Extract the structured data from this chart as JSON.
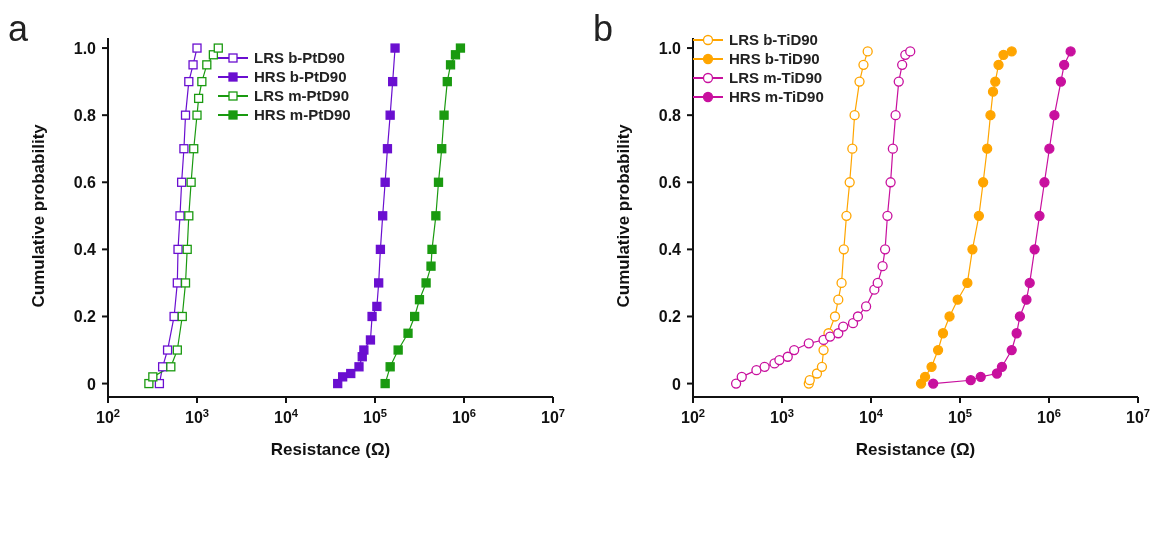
{
  "chart_data": [
    {
      "type": "line",
      "title": "a",
      "xlabel": "Resistance (Ω)",
      "ylabel": "Cumulative probability",
      "log": "x",
      "marker": "square",
      "line_style": "solid",
      "legend": "top",
      "xlim": [
        100,
        10000000
      ],
      "xticks": [
        {
          "value": 100,
          "label": "10$^{2}$"
        },
        {
          "value": 1000,
          "label": "10$^{3}$"
        },
        {
          "value": 10000,
          "label": "10$^{4}$"
        },
        {
          "value": 100000,
          "label": "10$^{5}$"
        },
        {
          "value": 1000000,
          "label": "10$^{6}$"
        },
        {
          "value": 10000000,
          "label": "10$^{7}$"
        }
      ],
      "ylim": [
        -0.04,
        1.03
      ],
      "yticks": [
        0,
        {
          "value": 0.2,
          "label": "0.2"
        },
        {
          "value": 0.4,
          "label": "0.4"
        },
        {
          "value": 0.6,
          "label": "0.6"
        },
        {
          "value": 0.8,
          "label": "0.8"
        },
        {
          "value": 1,
          "label": "1.0"
        }
      ],
      "series": [
        {
          "name": "LRS b-PtD90",
          "color": "#6a0fd0",
          "x": [
            378,
            411,
            467,
            553,
            601,
            612,
            644,
            672,
            713,
            743,
            809,
            903,
            1000
          ],
          "values": [
            0,
            0.05,
            0.1,
            0.2,
            0.3,
            0.4,
            0.5,
            0.6,
            0.7,
            0.8,
            0.9,
            0.95,
            1
          ]
        },
        {
          "name": "HRS b-PtD90",
          "color": "#6a0fd0",
          "x": [
            38100,
            43300,
            53400,
            66100,
            71900,
            75000,
            88900,
            92700,
            105000,
            110000,
            115000,
            122000,
            130000,
            138000,
            148000,
            158000,
            168000
          ],
          "values": [
            0,
            0.02,
            0.03,
            0.05,
            0.08,
            0.1,
            0.13,
            0.2,
            0.23,
            0.3,
            0.4,
            0.5,
            0.6,
            0.7,
            0.8,
            0.9,
            1
          ]
        },
        {
          "name": "LRS m-PtD90",
          "color": "#1a9a10",
          "x": [
            288,
            319,
            508,
            601,
            683,
            743,
            776,
            809,
            859,
            919,
            1000,
            1043,
            1134,
            1289,
            1527,
            1734
          ],
          "values": [
            0,
            0.02,
            0.05,
            0.1,
            0.2,
            0.3,
            0.4,
            0.5,
            0.6,
            0.7,
            0.8,
            0.85,
            0.9,
            0.95,
            0.98,
            1
          ]
        },
        {
          "name": "HRS m-PtD90",
          "color": "#1a9a10",
          "x": [
            130000,
            148000,
            182000,
            235000,
            279000,
            316000,
            375000,
            426000,
            437000,
            483000,
            517000,
            562000,
            597000,
            649000,
            706000,
            802000,
            912000
          ],
          "values": [
            0,
            0.05,
            0.1,
            0.15,
            0.2,
            0.25,
            0.3,
            0.35,
            0.4,
            0.5,
            0.6,
            0.7,
            0.8,
            0.9,
            0.95,
            0.98,
            1
          ]
        }
      ]
    },
    {
      "type": "line",
      "title": "b",
      "xlabel": "Resistance (Ω)",
      "ylabel": "Cumulative probability",
      "log": "x",
      "marker": "circle",
      "line_style": "solid",
      "legend": "top left",
      "xlim": [
        100,
        10000000
      ],
      "xticks": [
        {
          "value": 100,
          "label": "10$^{2}$"
        },
        {
          "value": 1000,
          "label": "10$^{3}$"
        },
        {
          "value": 10000,
          "label": "10$^{4}$"
        },
        {
          "value": 100000,
          "label": "10$^{5}$"
        },
        {
          "value": 1000000,
          "label": "10$^{6}$"
        },
        {
          "value": 10000000,
          "label": "10$^{7}$"
        }
      ],
      "ylim": [
        -0.04,
        1.03
      ],
      "yticks": [
        0,
        {
          "value": 0.2,
          "label": "0.2"
        },
        {
          "value": 0.4,
          "label": "0.4"
        },
        {
          "value": 0.6,
          "label": "0.6"
        },
        {
          "value": 0.8,
          "label": "0.8"
        },
        {
          "value": 1,
          "label": "1.0"
        }
      ],
      "series": [
        {
          "name": "LRS b-TiD90",
          "color": "#ffa500",
          "x": [
            2000,
            2050,
            2470,
            2810,
            2930,
            3330,
            3940,
            4290,
            4670,
            4950,
            5300,
            5760,
            6170,
            6540,
            7430,
            8230,
            9180
          ],
          "values": [
            0,
            0.01,
            0.03,
            0.05,
            0.1,
            0.15,
            0.2,
            0.25,
            0.3,
            0.4,
            0.5,
            0.6,
            0.7,
            0.8,
            0.9,
            0.95,
            0.99
          ]
        },
        {
          "name": "HRS b-TiD90",
          "color": "#ffa500",
          "x": [
            36500,
            40500,
            47900,
            56700,
            64400,
            76300,
            94200,
            121000,
            138000,
            163000,
            182000,
            202000,
            220000,
            235000,
            249000,
            271000,
            308000,
            381000
          ],
          "values": [
            0,
            0.02,
            0.05,
            0.1,
            0.15,
            0.2,
            0.25,
            0.3,
            0.4,
            0.5,
            0.6,
            0.7,
            0.8,
            0.87,
            0.9,
            0.95,
            0.98,
            0.99
          ]
        },
        {
          "name": "LRS m-TiD90",
          "color": "#c8109e",
          "x": [
            305,
            353,
            516,
            638,
            823,
            935,
            1160,
            1370,
            2000,
            2930,
            3470,
            4290,
            4870,
            6280,
            7130,
            8810,
            10900,
            11900,
            13500,
            14400,
            15300,
            16600,
            17600,
            18900,
            20500,
            22400,
            24300,
            27600
          ],
          "values": [
            0,
            0.02,
            0.04,
            0.05,
            0.06,
            0.07,
            0.08,
            0.1,
            0.12,
            0.13,
            0.14,
            0.15,
            0.17,
            0.18,
            0.2,
            0.23,
            0.28,
            0.3,
            0.35,
            0.4,
            0.5,
            0.6,
            0.7,
            0.8,
            0.9,
            0.95,
            0.98,
            0.99
          ]
        },
        {
          "name": "HRS m-TiD90",
          "color": "#c8109e",
          "x": [
            50000,
            132000,
            171000,
            260000,
            296000,
            381000,
            433000,
            471000,
            558000,
            607000,
            689000,
            782000,
            889000,
            1010000,
            1150000,
            1360000,
            1480000,
            1750000
          ],
          "values": [
            0,
            0.01,
            0.02,
            0.03,
            0.05,
            0.1,
            0.15,
            0.2,
            0.25,
            0.3,
            0.4,
            0.5,
            0.6,
            0.7,
            0.8,
            0.9,
            0.95,
            0.99
          ]
        }
      ]
    }
  ]
}
